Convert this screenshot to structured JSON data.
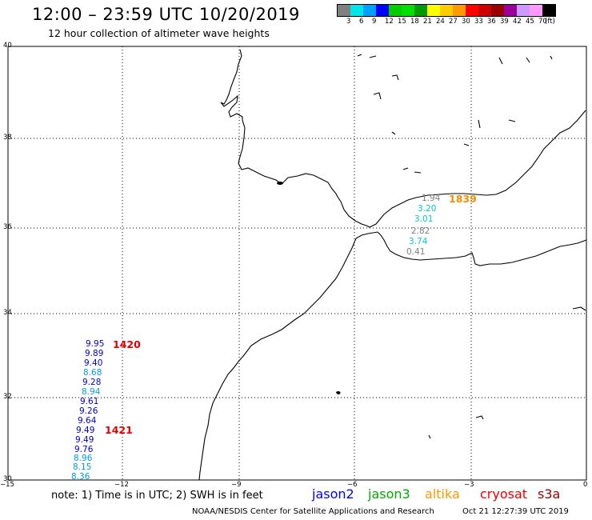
{
  "header": {
    "title": "12:00 – 23:59 UTC 10/20/2019",
    "subtitle": "12 hour collection of altimeter wave heights"
  },
  "colorbar": {
    "colors": [
      "#808080",
      "#00e5e5",
      "#00a0ff",
      "#0000ff",
      "#00cc00",
      "#00e000",
      "#009900",
      "#ffff00",
      "#ffcc00",
      "#ff9900",
      "#ff0000",
      "#cc0000",
      "#990000",
      "#990099",
      "#cc99ff",
      "#ff99ff",
      "#000000"
    ],
    "labels": [
      "3",
      "6",
      "9",
      "12",
      "15",
      "18",
      "21",
      "24",
      "27",
      "30",
      "33",
      "36",
      "39",
      "42",
      "45",
      "70",
      "(ft)"
    ]
  },
  "axes": {
    "lat_labels": [
      "40",
      "38",
      "36",
      "34",
      "32",
      "30"
    ],
    "lon_labels": [
      "−15",
      "−12",
      "−9",
      "−6",
      "−3",
      "0"
    ]
  },
  "tracks": {
    "atlantic": [
      {
        "value": "9.95",
        "color": "#0000cc"
      },
      {
        "value": "9.89",
        "color": "#0000cc"
      },
      {
        "value": "9.40",
        "color": "#0000cc"
      },
      {
        "value": "8.68",
        "color": "#00a0dd"
      },
      {
        "value": "9.28",
        "color": "#0000cc"
      },
      {
        "value": "8.94",
        "color": "#00a0dd"
      },
      {
        "value": "9.61",
        "color": "#0000cc"
      },
      {
        "value": "9.26",
        "color": "#0000cc"
      },
      {
        "value": "9.64",
        "color": "#0000cc"
      },
      {
        "value": "9.49",
        "color": "#0000cc"
      },
      {
        "value": "9.49",
        "color": "#0000cc"
      },
      {
        "value": "9.76",
        "color": "#0000cc"
      },
      {
        "value": "8.96",
        "color": "#00a0dd"
      },
      {
        "value": "8.15",
        "color": "#00a0dd"
      },
      {
        "value": "8.36",
        "color": "#00a0dd"
      }
    ],
    "mediterranean": [
      {
        "value": "1.94",
        "color": "#808080"
      },
      {
        "value": "3.20",
        "color": "#00cccc"
      },
      {
        "value": "3.01",
        "color": "#00cccc"
      },
      {
        "value": "2.82",
        "color": "#808080"
      },
      {
        "value": "3.74",
        "color": "#00cccc"
      },
      {
        "value": "0.41",
        "color": "#808080"
      }
    ],
    "time_labels": [
      {
        "text": "1420",
        "color": "#e00000"
      },
      {
        "text": "1421",
        "color": "#e00000"
      },
      {
        "text": "1839",
        "color": "#f09000"
      }
    ]
  },
  "footer": {
    "note": "note: 1) Time is in UTC; 2) SWH is in feet",
    "legend": [
      {
        "name": "jason2",
        "color": "#0000ff"
      },
      {
        "name": "jason3",
        "color": "#00aa00"
      },
      {
        "name": "altika",
        "color": "#ff9900"
      },
      {
        "name": "cryosat",
        "color": "#ee0000"
      },
      {
        "name": "s3a",
        "color": "#990000"
      }
    ],
    "credit": "NOAA/NESDIS Center for Satellite Applications and Research",
    "timestamp": "Oct 21 12:27:39 UTC 2019"
  }
}
